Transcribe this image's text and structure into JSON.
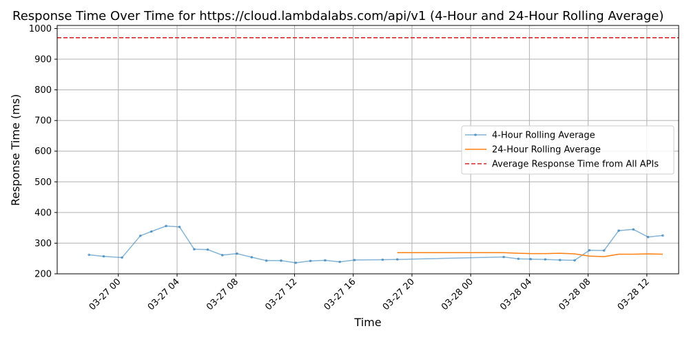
{
  "chart_data": {
    "type": "line",
    "title": "Response Time Over Time for https://cloud.lambdalabs.com/api/v1 (4-Hour and 24-Hour Rolling Average)",
    "xlabel": "Time",
    "ylabel": "Response Time (ms)",
    "x_is_datetime": true,
    "xlim": [
      "2024-03-26T19:50",
      "2024-03-28T14:10"
    ],
    "ylim": [
      200,
      1010
    ],
    "xticks": [
      {
        "t": "2024-03-27T00:00",
        "label": "03-27 00"
      },
      {
        "t": "2024-03-27T04:00",
        "label": "03-27 04"
      },
      {
        "t": "2024-03-27T08:00",
        "label": "03-27 08"
      },
      {
        "t": "2024-03-27T12:00",
        "label": "03-27 12"
      },
      {
        "t": "2024-03-27T16:00",
        "label": "03-27 16"
      },
      {
        "t": "2024-03-27T20:00",
        "label": "03-27 20"
      },
      {
        "t": "2024-03-28T00:00",
        "label": "03-28 00"
      },
      {
        "t": "2024-03-28T04:00",
        "label": "03-28 04"
      },
      {
        "t": "2024-03-28T08:00",
        "label": "03-28 08"
      },
      {
        "t": "2024-03-28T12:00",
        "label": "03-28 12"
      }
    ],
    "yticks": [
      200,
      300,
      400,
      500,
      600,
      700,
      800,
      900,
      1000
    ],
    "grid": true,
    "legend_position": "center-right",
    "series": [
      {
        "name": "4-Hour Rolling Average",
        "color": "#1f77b4",
        "marker": "dot",
        "points": [
          {
            "t": "2024-03-26T22:00",
            "y": 262
          },
          {
            "t": "2024-03-26T23:00",
            "y": 257
          },
          {
            "t": "2024-03-27T00:15",
            "y": 253
          },
          {
            "t": "2024-03-27T01:30",
            "y": 324
          },
          {
            "t": "2024-03-27T02:15",
            "y": 338
          },
          {
            "t": "2024-03-27T03:15",
            "y": 356
          },
          {
            "t": "2024-03-27T04:10",
            "y": 353
          },
          {
            "t": "2024-03-27T05:10",
            "y": 280
          },
          {
            "t": "2024-03-27T06:05",
            "y": 279
          },
          {
            "t": "2024-03-27T07:05",
            "y": 261
          },
          {
            "t": "2024-03-27T08:05",
            "y": 266
          },
          {
            "t": "2024-03-27T09:05",
            "y": 254
          },
          {
            "t": "2024-03-27T10:05",
            "y": 243
          },
          {
            "t": "2024-03-27T11:05",
            "y": 243
          },
          {
            "t": "2024-03-27T12:05",
            "y": 236
          },
          {
            "t": "2024-03-27T13:05",
            "y": 242
          },
          {
            "t": "2024-03-27T14:05",
            "y": 244
          },
          {
            "t": "2024-03-27T15:05",
            "y": 239
          },
          {
            "t": "2024-03-27T16:05",
            "y": 245
          },
          {
            "t": "2024-03-27T18:00",
            "y": 246
          },
          {
            "t": "2024-03-27T19:00",
            "y": 247
          },
          {
            "t": "2024-03-28T02:15",
            "y": 255
          },
          {
            "t": "2024-03-28T03:15",
            "y": 249
          },
          {
            "t": "2024-03-28T04:05",
            "y": 248
          },
          {
            "t": "2024-03-28T05:05",
            "y": 247
          },
          {
            "t": "2024-03-28T06:05",
            "y": 245
          },
          {
            "t": "2024-03-28T07:05",
            "y": 244
          },
          {
            "t": "2024-03-28T08:05",
            "y": 277
          },
          {
            "t": "2024-03-28T09:05",
            "y": 276
          },
          {
            "t": "2024-03-28T10:05",
            "y": 341
          },
          {
            "t": "2024-03-28T11:05",
            "y": 345
          },
          {
            "t": "2024-03-28T12:05",
            "y": 320
          },
          {
            "t": "2024-03-28T13:05",
            "y": 325
          }
        ]
      },
      {
        "name": "24-Hour Rolling Average",
        "color": "#ff7f0e",
        "marker": "none",
        "points": [
          {
            "t": "2024-03-27T19:00",
            "y": 269
          },
          {
            "t": "2024-03-28T02:15",
            "y": 269
          },
          {
            "t": "2024-03-28T03:15",
            "y": 267
          },
          {
            "t": "2024-03-28T04:05",
            "y": 266
          },
          {
            "t": "2024-03-28T05:05",
            "y": 266
          },
          {
            "t": "2024-03-28T06:05",
            "y": 267
          },
          {
            "t": "2024-03-28T07:05",
            "y": 265
          },
          {
            "t": "2024-03-28T08:05",
            "y": 258
          },
          {
            "t": "2024-03-28T09:05",
            "y": 256
          },
          {
            "t": "2024-03-28T10:05",
            "y": 264
          },
          {
            "t": "2024-03-28T11:05",
            "y": 264
          },
          {
            "t": "2024-03-28T12:05",
            "y": 265
          },
          {
            "t": "2024-03-28T13:05",
            "y": 264
          }
        ]
      }
    ],
    "reference_lines": [
      {
        "name": "Average Response Time from All APIs",
        "y": 970,
        "color": "#d62728",
        "style": "dashed"
      }
    ]
  }
}
